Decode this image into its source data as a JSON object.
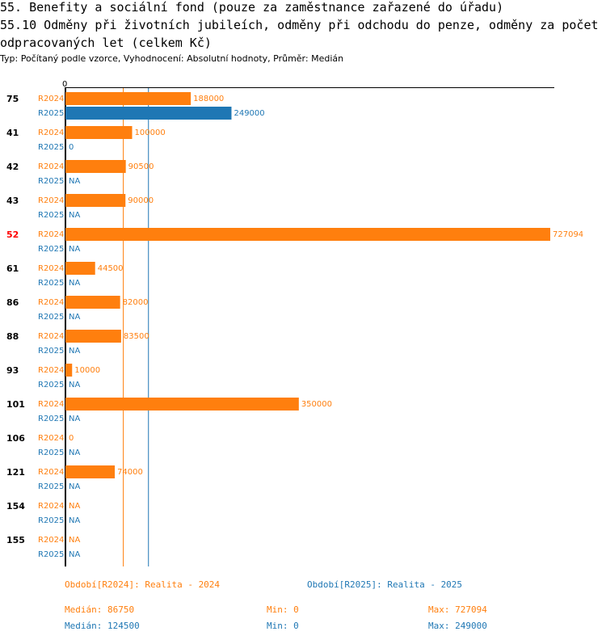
{
  "header": {
    "title": "55. Benefity a sociální fond (pouze za zaměstnance zařazené do úřadu)",
    "subtitle": "55.10 Odměny při životních jubileích, odměny při odchodu do penze, odměny za počet odpracovaných let (celkem Kč)",
    "meta": "Typ: Počítaný podle vzorce, Vyhodnocení: Absolutní hodnoty, Průměr: Medián"
  },
  "chart_data": {
    "type": "bar",
    "orientation": "horizontal",
    "axis_zero_label": "0",
    "x_max": 727094,
    "categories": [
      "75",
      "41",
      "42",
      "43",
      "52",
      "61",
      "86",
      "88",
      "93",
      "101",
      "106",
      "121",
      "154",
      "155"
    ],
    "highlight_category": "52",
    "series": [
      {
        "name": "R2024",
        "legend": "Období[R2024]: Realita - 2024",
        "color": "#ff7f0e",
        "values": [
          188000,
          100000,
          90500,
          90000,
          727094,
          44500,
          82000,
          83500,
          10000,
          350000,
          0,
          74000,
          null,
          null
        ],
        "labels": [
          "188000",
          "100000",
          "90500",
          "90000",
          "727094",
          "44500",
          "82000",
          "83500",
          "10000",
          "350000",
          "0",
          "74000",
          "NA",
          "NA"
        ],
        "median": 86750,
        "stats": {
          "median": "Medián: 86750",
          "min": "Min: 0",
          "max": "Max: 727094"
        }
      },
      {
        "name": "R2025",
        "legend": "Období[R2025]: Realita - 2025",
        "color": "#1f77b4",
        "values": [
          249000,
          0,
          null,
          null,
          null,
          null,
          null,
          null,
          null,
          null,
          null,
          null,
          null,
          null
        ],
        "labels": [
          "249000",
          "0",
          "NA",
          "NA",
          "NA",
          "NA",
          "NA",
          "NA",
          "NA",
          "NA",
          "NA",
          "NA",
          "NA",
          "NA"
        ],
        "median": 124500,
        "stats": {
          "median": "Medián: 124500",
          "min": "Min: 0",
          "max": "Max: 249000"
        }
      }
    ]
  }
}
